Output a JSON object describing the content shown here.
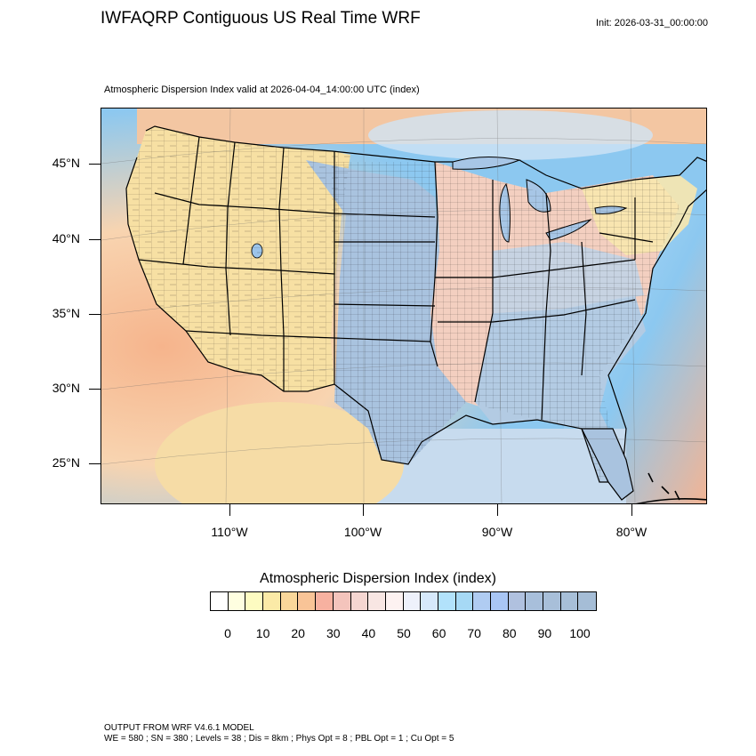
{
  "header": {
    "title": "IWFAQRP Contiguous US Real Time WRF",
    "init": "Init: 2026-03-31_00:00:00",
    "subtitle": "Atmospheric Dispersion Index valid at 2026-04-04_14:00:00 UTC   (index)"
  },
  "map": {
    "lat_labels": [
      "45°N",
      "40°N",
      "35°N",
      "30°N",
      "25°N"
    ],
    "lon_labels": [
      "110°W",
      "100°W",
      "90°W",
      "80°W"
    ],
    "colors": {
      "ocean_low": "#8cc8f0",
      "ocean_high": "#f6b48c",
      "west_land": "#f7e3a6",
      "plains_blue": "#a9c3df",
      "east_mix": "#f3cfc0",
      "southeast_blue": "#b3cbe3",
      "pale_blue": "#dbe8f5",
      "boundary": "#000000"
    }
  },
  "colorbar": {
    "title": "Atmospheric Dispersion Index  (index)",
    "labels": [
      "0",
      "10",
      "20",
      "30",
      "40",
      "50",
      "60",
      "70",
      "80",
      "90",
      "100"
    ],
    "colors": [
      "#ffffff",
      "#fefee0",
      "#fdfbc1",
      "#fbeaa7",
      "#fad79a",
      "#f9c497",
      "#f7b1a0",
      "#f4c4bc",
      "#f5d6d1",
      "#f8e6e3",
      "#fdf2f1",
      "#eef1fb",
      "#d6e9fb",
      "#b2e2fb",
      "#a6d9f5",
      "#b0ccf2",
      "#a9c6f5",
      "#b0c1df",
      "#a8bfdb",
      "#a8bfd9",
      "#a7bfd8",
      "#a5bdd6"
    ]
  },
  "footer": {
    "line1": "OUTPUT FROM WRF V4.6.1 MODEL",
    "line2": "WE = 580 ; SN = 380 ; Levels = 38 ; Dis = 8km ; Phys Opt = 8 ; PBL Opt = 1 ; Cu Opt = 5"
  }
}
